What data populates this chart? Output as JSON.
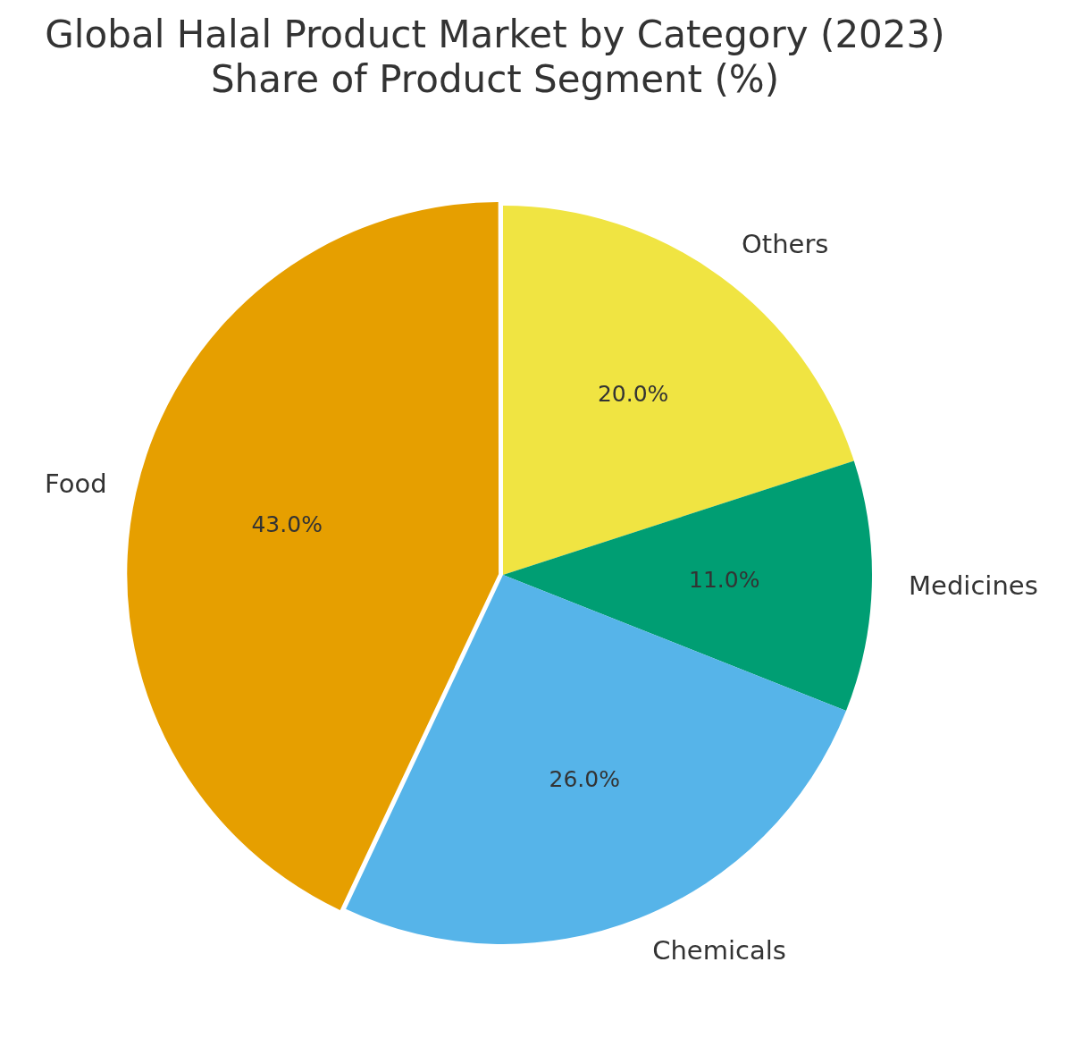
{
  "chart_data": {
    "type": "pie",
    "title": "Global Halal Product Market by Category (2023)",
    "subtitle": "Share of Product Segment (%)",
    "categories": [
      "Food",
      "Chemicals",
      "Medicines",
      "Others"
    ],
    "values": [
      43,
      26,
      11,
      20
    ],
    "colors": [
      "#e69f00",
      "#56b4e9",
      "#009e73",
      "#f0e442"
    ],
    "value_labels": [
      "43.0%",
      "26.0%",
      "11.0%",
      "20.0%"
    ],
    "legend": false
  }
}
